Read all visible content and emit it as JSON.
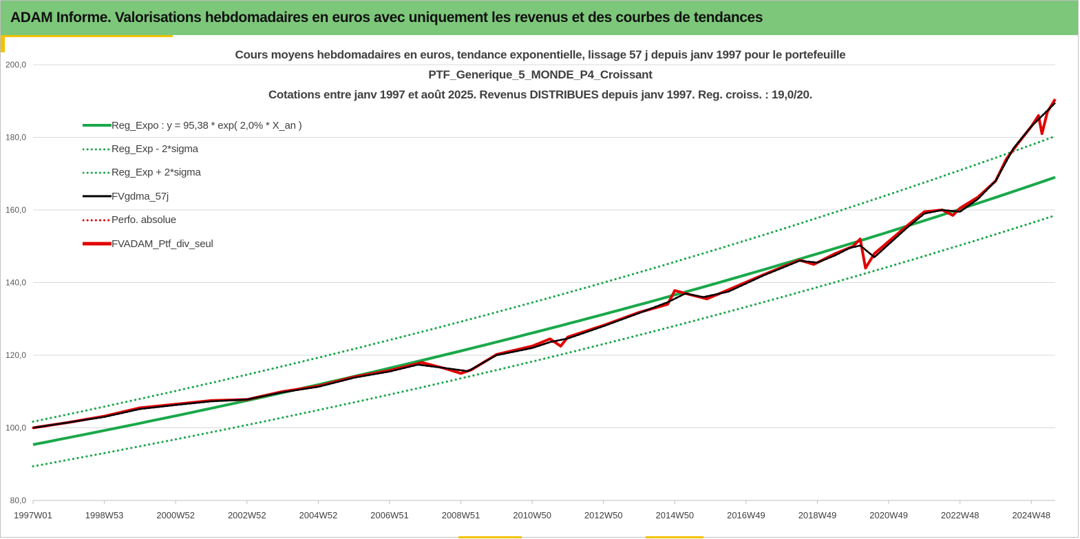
{
  "banner": {
    "title": "ADAM Informe. Valorisations hebdomadaires en euros avec uniquement les revenus et des courbes de tendances"
  },
  "chart_data": {
    "type": "line",
    "title_lines": [
      "Cours moyens hebdomadaires  en euros, tendance exponentielle, lissage 57 j depuis janv 1997 pour le portefeuille",
      "PTF_Generique_5_MONDE_P4_Croissant",
      "Cotations entre janv 1997 et août 2025. Revenus DISTRIBUES depuis janv 1997. Reg. croiss. : 19,0/20."
    ],
    "ylim": [
      80,
      200
    ],
    "y_ticks": [
      "80,0",
      "100,0",
      "120,0",
      "140,0",
      "160,0",
      "180,0",
      "200,0"
    ],
    "y_tick_values": [
      80,
      100,
      120,
      140,
      160,
      180,
      200
    ],
    "x_tick_labels": [
      "1997W01",
      "1998W53",
      "2000W52",
      "2002W52",
      "2004W52",
      "2006W51",
      "2008W51",
      "2010W50",
      "2012W50",
      "2014W50",
      "2016W49",
      "2018W49",
      "2020W49",
      "2022W48",
      "2024W48"
    ],
    "x_tick_years": [
      1997.0,
      1999.0,
      2001.0,
      2003.0,
      2005.0,
      2007.0,
      2009.0,
      2011.0,
      2013.0,
      2015.0,
      2017.0,
      2019.0,
      2021.0,
      2023.0,
      2025.0
    ],
    "x_range_years": [
      1997.0,
      2025.67
    ],
    "legend_position": "top-left",
    "grid": "horizontal",
    "series": [
      {
        "name": "Reg_Expo : y = 95,38 * exp( 2,0% *  X_an )",
        "style": "solid",
        "color": "#1aa84a",
        "years": [
          1997.0,
          2025.67
        ],
        "values": [
          95.38,
          169.0
        ],
        "curve": "exponential"
      },
      {
        "name": "Reg_Exp - 2*sigma",
        "style": "dotted",
        "color": "#1aa84a",
        "years": [
          1997.0,
          2025.67
        ],
        "values": [
          89.4,
          158.5
        ],
        "curve": "exponential"
      },
      {
        "name": "Reg_Exp + 2*sigma",
        "style": "dotted",
        "color": "#1aa84a",
        "years": [
          1997.0,
          2025.67
        ],
        "values": [
          101.7,
          180.3
        ],
        "curve": "exponential"
      },
      {
        "name": "FVgdma_57j",
        "style": "solid",
        "color": "#000000",
        "years": [
          1997.0,
          1998.0,
          1999.0,
          2000.0,
          2001.0,
          2002.0,
          2003.0,
          2004.0,
          2005.0,
          2006.0,
          2007.0,
          2007.8,
          2008.6,
          2009.2,
          2010.0,
          2011.0,
          2011.5,
          2012.0,
          2013.0,
          2014.0,
          2014.8,
          2015.3,
          2015.8,
          2016.5,
          2017.5,
          2018.5,
          2019.0,
          2019.5,
          2019.9,
          2020.2,
          2020.6,
          2021.5,
          2022.0,
          2022.5,
          2023.0,
          2023.5,
          2024.0,
          2024.5,
          2025.0,
          2025.67
        ],
        "values": [
          100.0,
          101.5,
          103.0,
          105.2,
          106.3,
          107.3,
          107.8,
          109.8,
          111.3,
          113.8,
          115.5,
          117.4,
          116.4,
          115.6,
          120.0,
          122.0,
          123.6,
          124.6,
          128.0,
          131.6,
          134.6,
          137.0,
          136.0,
          137.5,
          142.0,
          146.0,
          145.5,
          147.5,
          149.5,
          150.2,
          147.0,
          155.0,
          159.0,
          160.0,
          159.5,
          163.0,
          168.0,
          177.0,
          183.0,
          189.5
        ]
      },
      {
        "name": "Perfo. absolue",
        "style": "dotted",
        "color": "#e00000",
        "years": [
          1997.0,
          1998.0,
          1999.0,
          2000.0,
          2001.0,
          2002.0,
          2003.0,
          2004.0,
          2005.0,
          2006.0,
          2007.0,
          2007.8,
          2008.6,
          2009.2,
          2010.0,
          2011.0,
          2011.5,
          2012.0,
          2013.0,
          2014.0,
          2014.8,
          2015.3,
          2015.8,
          2016.5,
          2017.5,
          2018.5,
          2019.0,
          2019.5,
          2019.9,
          2020.2,
          2020.6,
          2021.5,
          2022.0,
          2022.5,
          2023.0,
          2023.5,
          2024.0,
          2024.5,
          2025.0,
          2025.67
        ],
        "values": [
          100.0,
          101.5,
          103.0,
          105.2,
          106.3,
          107.3,
          107.8,
          109.8,
          111.3,
          113.8,
          115.5,
          117.4,
          116.4,
          115.6,
          120.0,
          122.0,
          123.6,
          124.6,
          128.0,
          131.6,
          134.6,
          137.0,
          136.0,
          137.5,
          142.0,
          146.0,
          145.5,
          147.5,
          149.5,
          150.2,
          147.0,
          155.0,
          159.0,
          160.0,
          159.5,
          163.0,
          168.0,
          177.0,
          183.0,
          189.5
        ]
      },
      {
        "name": "FVADAM_Ptf_div_seul",
        "style": "solid",
        "color": "#e00000",
        "years": [
          1997.0,
          1998.0,
          1999.0,
          2000.0,
          2001.0,
          2002.0,
          2003.0,
          2004.0,
          2005.0,
          2006.0,
          2007.0,
          2007.5,
          2007.9,
          2008.5,
          2009.0,
          2009.3,
          2010.0,
          2011.0,
          2011.5,
          2011.8,
          2012.0,
          2013.0,
          2014.0,
          2014.8,
          2015.0,
          2015.5,
          2015.9,
          2016.5,
          2017.5,
          2018.5,
          2018.9,
          2019.5,
          2020.0,
          2020.2,
          2020.35,
          2020.6,
          2021.5,
          2022.0,
          2022.5,
          2022.8,
          2023.0,
          2023.5,
          2024.0,
          2024.3,
          2024.6,
          2025.0,
          2025.2,
          2025.3,
          2025.45,
          2025.67
        ],
        "values": [
          100.0,
          101.5,
          103.2,
          105.5,
          106.5,
          107.5,
          107.8,
          110.0,
          111.5,
          114.0,
          115.8,
          117.0,
          118.0,
          116.5,
          115.0,
          116.0,
          120.2,
          122.5,
          124.5,
          122.5,
          125.0,
          128.2,
          131.8,
          134.0,
          137.8,
          136.5,
          135.5,
          138.0,
          142.2,
          146.2,
          145.0,
          148.0,
          150.0,
          152.0,
          144.0,
          148.0,
          155.5,
          159.5,
          160.0,
          158.5,
          160.5,
          163.5,
          168.0,
          174.0,
          178.0,
          183.0,
          186.0,
          181.0,
          187.0,
          190.5
        ]
      }
    ]
  }
}
